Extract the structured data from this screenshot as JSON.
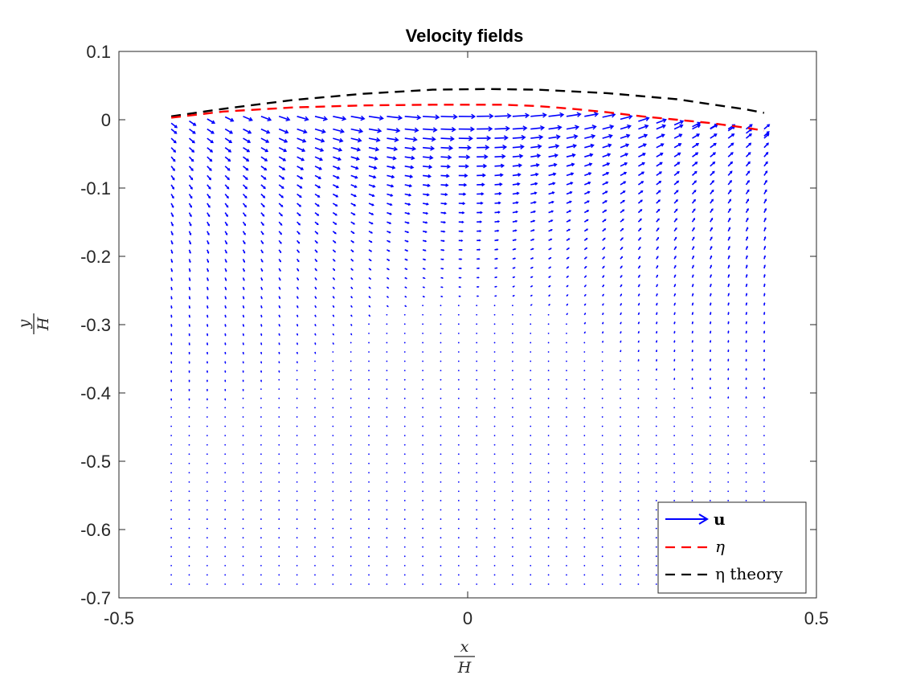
{
  "chart_data": {
    "type": "quiver",
    "title": "Velocity fields",
    "xlabel": {
      "numerator": "x",
      "denominator": "H"
    },
    "ylabel": {
      "numerator": "y",
      "denominator": "H"
    },
    "xlim": [
      -0.5,
      0.5
    ],
    "ylim": [
      -0.7,
      0.1
    ],
    "xticks": [
      -0.5,
      0,
      0.5
    ],
    "xtick_labels": [
      "-0.5",
      "0",
      "0.5"
    ],
    "yticks": [
      0.1,
      0,
      -0.1,
      -0.2,
      -0.3,
      -0.4,
      -0.5,
      -0.6,
      -0.7
    ],
    "ytick_labels": [
      "0.1",
      "0",
      "-0.1",
      "-0.2",
      "-0.3",
      "-0.4",
      "-0.5",
      "-0.6",
      "-0.7"
    ],
    "grid": false,
    "legend_position": "bottom-right",
    "colors": {
      "u": "#0000ff",
      "eta": "#ff0000",
      "eta_theory": "#000000",
      "axes": "#262626"
    },
    "quiver_grid": {
      "x_start": -0.425,
      "x_end": 0.425,
      "x_count": 34,
      "y_start": 0.0,
      "y_end": -0.68,
      "y_count": 51
    },
    "series": [
      {
        "name": "u",
        "legend_label": "u",
        "kind": "quiver"
      },
      {
        "name": "η",
        "legend_label": "η",
        "kind": "line",
        "style": "dashed",
        "x": [
          -0.425,
          -0.35,
          -0.25,
          -0.15,
          -0.05,
          0.05,
          0.1,
          0.15,
          0.2,
          0.25,
          0.3,
          0.35,
          0.4,
          0.425
        ],
        "y": [
          0.003,
          0.012,
          0.018,
          0.021,
          0.022,
          0.022,
          0.02,
          0.016,
          0.011,
          0.005,
          0.0,
          -0.005,
          -0.012,
          -0.016
        ]
      },
      {
        "name": "η theory",
        "legend_label": "η theory",
        "kind": "line",
        "style": "dashed",
        "x": [
          -0.425,
          -0.35,
          -0.25,
          -0.15,
          -0.05,
          0.03,
          0.1,
          0.2,
          0.3,
          0.4,
          0.425
        ],
        "y": [
          0.005,
          0.016,
          0.029,
          0.038,
          0.044,
          0.045,
          0.044,
          0.039,
          0.03,
          0.015,
          0.01
        ]
      }
    ]
  }
}
